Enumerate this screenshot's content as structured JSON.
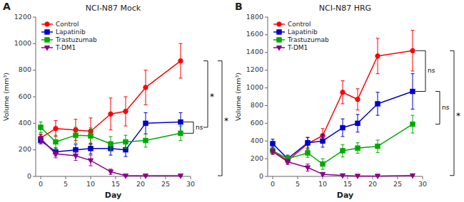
{
  "chart_data": [
    {
      "type": "line",
      "panel_label": "A",
      "title": "NCI-N87 Mock",
      "xlabel": "Day",
      "ylabel": "Volume (mm³)",
      "x": [
        0,
        3,
        7,
        10,
        14,
        17,
        21,
        28
      ],
      "xlim": [
        -1,
        30
      ],
      "xticks": [
        0,
        5,
        10,
        15,
        20,
        25,
        30
      ],
      "ylim": [
        0,
        1200
      ],
      "yticks": [
        0,
        200,
        400,
        600,
        800,
        1000,
        1200
      ],
      "grid": false,
      "legend": "upper left",
      "series": [
        {
          "name": "Control",
          "color": "#FF0000",
          "marker": "circle",
          "values": [
            290,
            360,
            350,
            340,
            470,
            490,
            670,
            870
          ],
          "yerr": [
            30,
            60,
            80,
            100,
            120,
            110,
            130,
            130
          ]
        },
        {
          "name": "Lapatinib",
          "color": "#0000CC",
          "marker": "square",
          "values": [
            270,
            185,
            200,
            210,
            210,
            200,
            400,
            410
          ],
          "yerr": [
            25,
            30,
            40,
            40,
            50,
            50,
            80,
            70
          ]
        },
        {
          "name": "Trastuzumab",
          "color": "#00AA00",
          "marker": "square",
          "values": [
            370,
            260,
            310,
            305,
            245,
            260,
            270,
            325
          ],
          "yerr": [
            40,
            50,
            60,
            60,
            55,
            50,
            50,
            55
          ]
        },
        {
          "name": "T-DM1",
          "color": "#8B008B",
          "marker": "triangle-down",
          "values": [
            285,
            170,
            155,
            120,
            35,
            5,
            5,
            5
          ],
          "yerr": [
            30,
            30,
            35,
            40,
            20,
            5,
            5,
            5
          ]
        }
      ],
      "annotations": [
        {
          "text": "ns",
          "from": 325,
          "to": 410
        },
        {
          "text": "*",
          "from": 370,
          "to": 870
        },
        {
          "text": "*",
          "from": 5,
          "to": 870
        }
      ]
    },
    {
      "type": "line",
      "panel_label": "B",
      "title": "NCI-N87 HRG",
      "xlabel": "Day",
      "ylabel": "Volume (mm³)",
      "x": [
        0,
        3,
        7,
        10,
        14,
        17,
        21,
        28
      ],
      "xlim": [
        -1,
        30
      ],
      "xticks": [
        0,
        5,
        10,
        15,
        20,
        25,
        30
      ],
      "ylim": [
        0,
        1800
      ],
      "yticks": [
        0,
        200,
        400,
        600,
        800,
        1000,
        1200,
        1400,
        1600,
        1800
      ],
      "grid": false,
      "legend": "upper left",
      "series": [
        {
          "name": "Control",
          "color": "#FF0000",
          "marker": "circle",
          "values": [
            290,
            175,
            370,
            460,
            950,
            870,
            1360,
            1420
          ],
          "yerr": [
            40,
            30,
            70,
            80,
            130,
            120,
            200,
            230
          ]
        },
        {
          "name": "Lapatinib",
          "color": "#0000CC",
          "marker": "square",
          "values": [
            370,
            200,
            380,
            400,
            550,
            600,
            820,
            960
          ],
          "yerr": [
            50,
            40,
            60,
            70,
            100,
            100,
            130,
            200
          ]
        },
        {
          "name": "Trastuzumab",
          "color": "#00AA00",
          "marker": "square",
          "values": [
            290,
            200,
            265,
            140,
            290,
            320,
            340,
            590
          ],
          "yerr": [
            30,
            30,
            50,
            60,
            70,
            60,
            70,
            100
          ]
        },
        {
          "name": "T-DM1",
          "color": "#8B008B",
          "marker": "triangle-down",
          "values": [
            280,
            165,
            100,
            25,
            10,
            5,
            5,
            10
          ],
          "yerr": [
            30,
            30,
            40,
            15,
            5,
            5,
            5,
            5
          ]
        }
      ],
      "annotations": [
        {
          "text": "ns",
          "from": 960,
          "to": 1420
        },
        {
          "text": "ns",
          "from": 590,
          "to": 960
        },
        {
          "text": "*",
          "from": 10,
          "to": 1420
        }
      ]
    }
  ]
}
